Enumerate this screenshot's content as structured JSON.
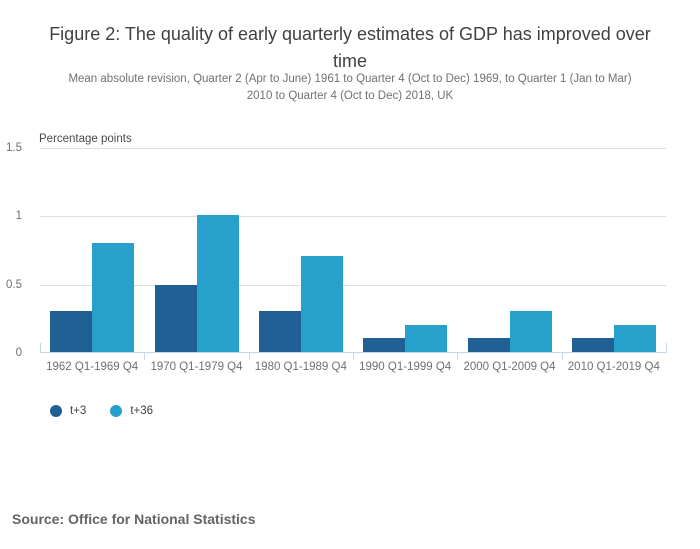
{
  "title": {
    "line1": "Figure 2: The quality of early quarterly estimates of GDP has improved over",
    "line2": "time"
  },
  "subtitle": {
    "line1": "Mean absolute revision, Quarter 2 (Apr to June) 1961 to Quarter 4 (Oct to Dec) 1969, to Quarter 1 (Jan to Mar)",
    "line2": "2010 to Quarter 4 (Oct to Dec) 2018, UK"
  },
  "source": "Source: Office for National Statistics",
  "chart_data": {
    "type": "bar",
    "title": "Figure 2: The quality of early quarterly estimates of GDP has improved over time",
    "subtitle": "Mean absolute revision, Quarter 2 (Apr to June) 1961 to Quarter 4 (Oct to Dec) 1969, to Quarter 1 (Jan to Mar) 2010 to Quarter 4 (Oct to Dec) 2018, UK",
    "ylabel": "Percentage points",
    "xlabel": "",
    "categories": [
      "1962 Q1-1969 Q4",
      "1970 Q1-1979 Q4",
      "1980 Q1-1989 Q4",
      "1990 Q1-1999 Q4",
      "2000 Q1-2009 Q4",
      "2010 Q1-2019 Q4"
    ],
    "series": [
      {
        "name": "t+3",
        "color": "#206095",
        "values": [
          0.3,
          0.49,
          0.3,
          0.1,
          0.1,
          0.1
        ]
      },
      {
        "name": "t+36",
        "color": "#27a0cc",
        "values": [
          0.8,
          1.0,
          0.7,
          0.2,
          0.3,
          0.2
        ]
      }
    ],
    "ylim": [
      0,
      1.5
    ],
    "yticks": [
      0,
      0.5,
      1,
      1.5
    ],
    "grid": true,
    "legend_position": "bottom-left"
  },
  "colors": {
    "title": "#414042",
    "subtitle": "#707071",
    "gridline": "#dcdee2",
    "axis": "#c7d7e4",
    "tick_label": "#707071",
    "legend_text": "#414042",
    "source_text": "#646466"
  }
}
